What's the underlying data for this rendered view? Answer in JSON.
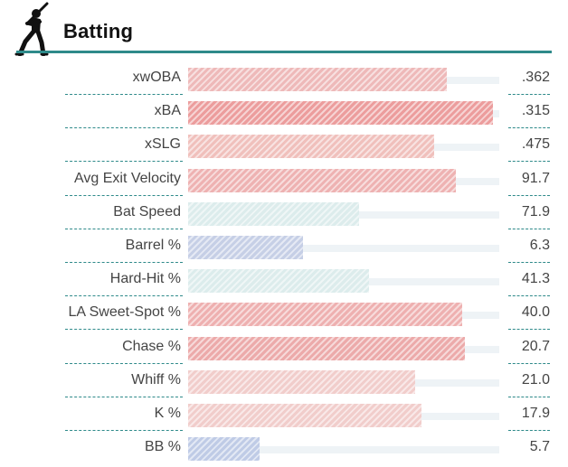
{
  "header": {
    "title": "Batting",
    "icon": "batter-icon"
  },
  "colors": {
    "accent": "#2e8a8a"
  },
  "stats": [
    {
      "label": "xwOBA",
      "value": ".362",
      "percentile": 83,
      "color": "#eeb9b9"
    },
    {
      "label": "xBA",
      "value": ".315",
      "percentile": 98,
      "color": "#ec9d9d"
    },
    {
      "label": "xSLG",
      "value": ".475",
      "percentile": 79,
      "color": "#f0c0bc"
    },
    {
      "label": "Avg Exit Velocity",
      "value": "91.7",
      "percentile": 86,
      "color": "#eeb2b2"
    },
    {
      "label": "Bat Speed",
      "value": "71.9",
      "percentile": 55,
      "color": "#dcecec"
    },
    {
      "label": "Barrel %",
      "value": "6.3",
      "percentile": 37,
      "color": "#c6cfe6"
    },
    {
      "label": "Hard-Hit %",
      "value": "41.3",
      "percentile": 58,
      "color": "#dcecec"
    },
    {
      "label": "LA Sweet-Spot %",
      "value": "40.0",
      "percentile": 88,
      "color": "#eeb0b0"
    },
    {
      "label": "Chase %",
      "value": "20.7",
      "percentile": 89,
      "color": "#ecaaaa"
    },
    {
      "label": "Whiff %",
      "value": "21.0",
      "percentile": 73,
      "color": "#f1cdcb"
    },
    {
      "label": "K %",
      "value": "17.9",
      "percentile": 75,
      "color": "#f1cdcb"
    },
    {
      "label": "BB %",
      "value": "5.7",
      "percentile": 23,
      "color": "#bfcbe6"
    }
  ]
}
